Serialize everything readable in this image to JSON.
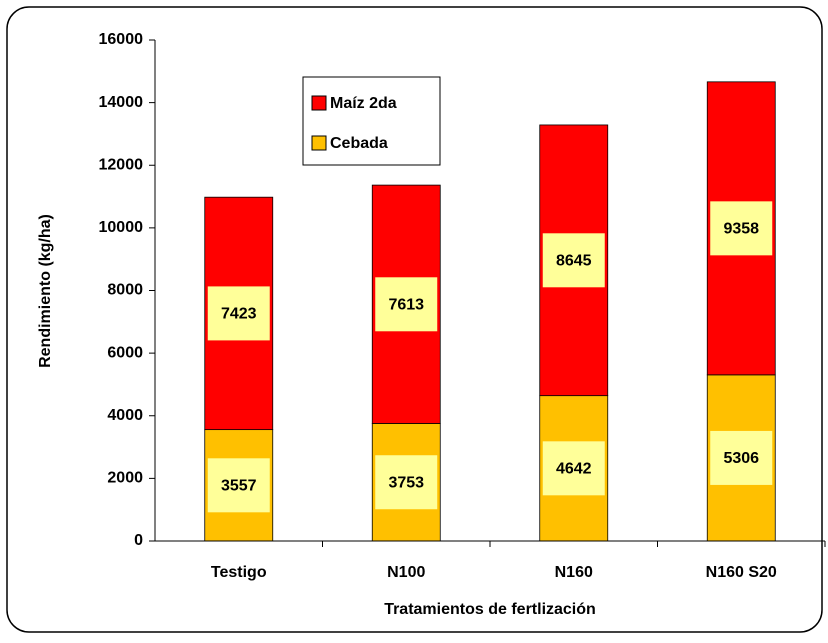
{
  "chart_data": {
    "type": "stacked_bar",
    "categories": [
      "Testigo",
      "N100",
      "N160",
      "N160 S20"
    ],
    "series": [
      {
        "name": "Cebada",
        "color": "#ffc000",
        "values": [
          3557,
          3753,
          4642,
          5306
        ]
      },
      {
        "name": "Maíz 2da",
        "color": "#ff0000",
        "values": [
          7423,
          7613,
          8645,
          9358
        ]
      }
    ],
    "ylim": [
      0,
      16000
    ],
    "yticks": [
      0,
      2000,
      4000,
      6000,
      8000,
      10000,
      12000,
      14000,
      16000
    ],
    "y_label": "Rendimiento (kg/ha)",
    "x_label": "Tratamientos de fertlización",
    "label_box_color": "#ffff99"
  }
}
